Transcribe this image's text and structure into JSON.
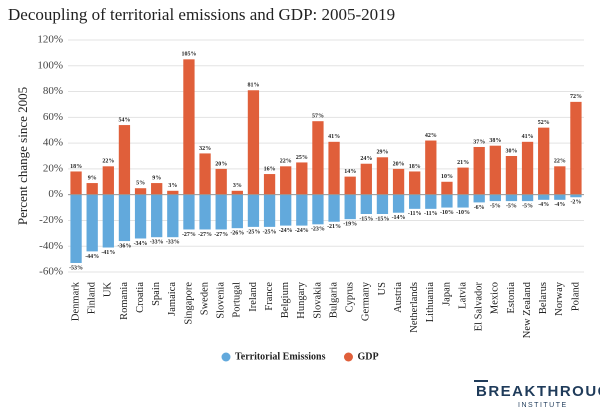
{
  "chart_data": {
    "type": "bar",
    "title": "Decoupling of territorial emissions and GDP: 2005-2019",
    "y_label": "Percent change since 2005",
    "categories": [
      "Denmark",
      "Finland",
      "UK",
      "Romania",
      "Croatia",
      "Spain",
      "Jamaica",
      "Singapore",
      "Sweden",
      "Slovenia",
      "Portugal",
      "Ireland",
      "France",
      "Belgium",
      "Hungary",
      "Slovakia",
      "Bulgaria",
      "Cyprus",
      "Germany",
      "US",
      "Austria",
      "Netherlands",
      "Lithuania",
      "Japan",
      "Latvia",
      "El Salvador",
      "Mexico",
      "Estonia",
      "New Zealand",
      "Belarus",
      "Norway",
      "Poland"
    ],
    "series": [
      {
        "name": "Territorial Emissions",
        "color": "#62a9dc",
        "values": [
          -53,
          -44,
          -41,
          -36,
          -34,
          -33,
          -33,
          -27,
          -27,
          -27,
          -26,
          -25,
          -25,
          -24,
          -24,
          -23,
          -21,
          -19,
          -15,
          -15,
          -14,
          -11,
          -11,
          -10,
          -10,
          -6,
          -5,
          -5,
          -5,
          -4,
          -4,
          -2
        ],
        "value_labels": [
          "-53%",
          "-44%",
          "-41%",
          "-36%",
          "-34%",
          "-33%",
          "-33%",
          "-27%",
          "-27%",
          "-27%",
          "-26%",
          "-25%",
          "-25%",
          "-24%",
          "-24%",
          "-23%",
          "-21%",
          "-19%",
          "-15%",
          "-15%",
          "-14%",
          "-11%",
          "-11%",
          "-10%",
          "-10%",
          "-6%",
          "-5%",
          "-5%",
          "-5%",
          "-4%",
          "-4%",
          "-2%"
        ]
      },
      {
        "name": "GDP",
        "color": "#e05f3a",
        "values": [
          18,
          9,
          22,
          54,
          5,
          9,
          3,
          105,
          32,
          20,
          3,
          81,
          16,
          22,
          25,
          57,
          41,
          14,
          24,
          29,
          20,
          18,
          42,
          10,
          21,
          37,
          38,
          30,
          41,
          52,
          22,
          72
        ],
        "value_labels": [
          "18%",
          "9%",
          "22%",
          "54%",
          "5%",
          "9%",
          "3%",
          "105%",
          "32%",
          "20%",
          "3%",
          "81%",
          "16%",
          "22%",
          "25%",
          "57%",
          "41%",
          "14%",
          "24%",
          "29%",
          "20%",
          "18%",
          "42%",
          "10%",
          "21%",
          "37%",
          "38%",
          "30%",
          "41%",
          "52%",
          "22%",
          "72%"
        ]
      }
    ],
    "ylim": [
      -60,
      120
    ],
    "yticks": [
      {
        "value": -60,
        "label": "-60%"
      },
      {
        "value": -40,
        "label": "-40%"
      },
      {
        "value": -20,
        "label": "-20%"
      },
      {
        "value": 0,
        "label": "0%"
      },
      {
        "value": 20,
        "label": "20%"
      },
      {
        "value": 40,
        "label": "40%"
      },
      {
        "value": 60,
        "label": "60%"
      },
      {
        "value": 80,
        "label": "80%"
      },
      {
        "value": 100,
        "label": "100%"
      },
      {
        "value": 120,
        "label": "120%"
      }
    ],
    "grid": true
  },
  "logo": {
    "name": "BREAKTHROUGH",
    "sub": "INSTITUTE"
  }
}
